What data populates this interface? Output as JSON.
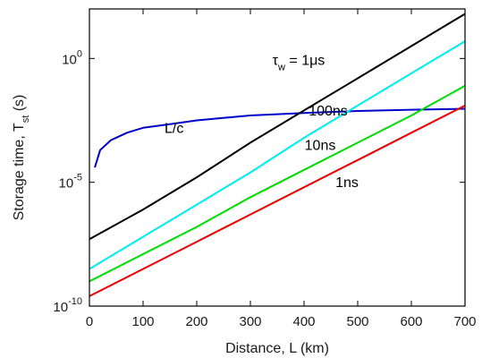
{
  "chart_data": {
    "type": "line",
    "xlabel": "Distance, L (km)",
    "ylabel": "Storage time, T",
    "ylabel_sub": "st",
    "ylabel_unit": " (s)",
    "xlim": [
      0,
      700
    ],
    "ylim_log10": [
      -10,
      2
    ],
    "y_scale": "log",
    "grid": false,
    "x_ticks": [
      0,
      100,
      200,
      300,
      400,
      500,
      600,
      700
    ],
    "y_ticks": [
      {
        "base": "10",
        "exp": "-10",
        "log": -10
      },
      {
        "base": "10",
        "exp": "-5",
        "log": -5
      },
      {
        "base": "10",
        "exp": "0",
        "log": 0
      }
    ],
    "series": [
      {
        "color": "#0000cc",
        "x": [
          10,
          20,
          40,
          70,
          100,
          150,
          200,
          300,
          400,
          500,
          600,
          700
        ],
        "y_log10": [
          -4.4,
          -3.7,
          -3.3,
          -3.0,
          -2.8,
          -2.65,
          -2.5,
          -2.3,
          -2.2,
          -2.12,
          -2.07,
          -2.03
        ]
      },
      {
        "color": "#000000",
        "x": [
          0,
          100,
          200,
          300,
          400,
          500,
          600,
          700
        ],
        "y_log10": [
          -7.3,
          -6.1,
          -4.8,
          -3.4,
          -2.1,
          -0.8,
          0.5,
          1.8
        ]
      },
      {
        "color": "#00eeee",
        "x": [
          0,
          100,
          200,
          300,
          400,
          500,
          600,
          700
        ],
        "y_log10": [
          -8.5,
          -7.2,
          -5.9,
          -4.6,
          -3.2,
          -1.9,
          -0.6,
          0.7
        ]
      },
      {
        "color": "#00dd00",
        "x": [
          0,
          100,
          200,
          300,
          400,
          500,
          600,
          700
        ],
        "y_log10": [
          -9.0,
          -7.9,
          -6.8,
          -5.6,
          -4.5,
          -3.4,
          -2.3,
          -1.1
        ]
      },
      {
        "color": "#ee0000",
        "x": [
          0,
          100,
          200,
          300,
          400,
          500,
          600,
          700
        ],
        "y_log10": [
          -9.6,
          -8.5,
          -7.4,
          -6.3,
          -5.2,
          -4.1,
          -3.0,
          -1.9
        ]
      }
    ],
    "annotations": [
      {
        "text": "L/c",
        "x": 140,
        "y_log10": -3.0,
        "anchor": "start"
      },
      {
        "text": "τ",
        "sub": "w",
        "rest": " = 1μs",
        "x": 390,
        "y_log10": -0.25,
        "anchor": "middle"
      },
      {
        "text": "100ns",
        "x": 445,
        "y_log10": -2.3,
        "anchor": "middle"
      },
      {
        "text": "10ns",
        "x": 430,
        "y_log10": -3.7,
        "anchor": "middle"
      },
      {
        "text": "1ns",
        "x": 480,
        "y_log10": -5.2,
        "anchor": "middle"
      }
    ]
  }
}
